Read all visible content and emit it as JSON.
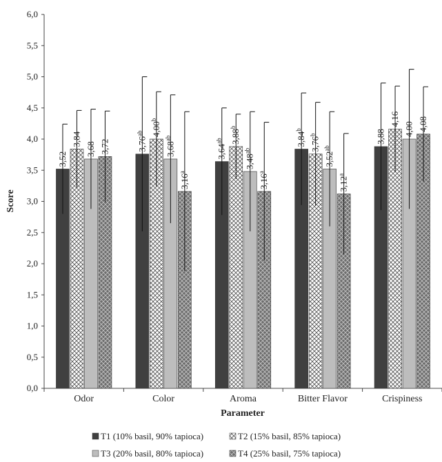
{
  "chart_data": {
    "type": "bar",
    "xlabel": "Parameter",
    "ylabel": "Score",
    "ylim": [
      0,
      6
    ],
    "yticks": [
      "0,0",
      "0,5",
      "1,0",
      "1,5",
      "2,0",
      "2,5",
      "3,0",
      "3,5",
      "4,0",
      "4,5",
      "5,0",
      "5,5",
      "6,0"
    ],
    "categories": [
      "Odor",
      "Color",
      "Aroma",
      "Bitter Flavor",
      "Crispiness"
    ],
    "grid": false,
    "legend_placement": "bottom",
    "series": [
      {
        "name": "T1 (10% basil, 90% tapioca)",
        "pattern": "solid-dark",
        "values": [
          3.52,
          3.76,
          3.64,
          3.84,
          3.88
        ],
        "err_upper": [
          4.24,
          5.0,
          4.5,
          4.74,
          4.9
        ],
        "err_lower": [
          2.8,
          2.52,
          2.78,
          2.94,
          2.86
        ],
        "labels": [
          "3,52",
          "3,76",
          "3,64",
          "3,84",
          "3,88"
        ],
        "sup": [
          "",
          "ab",
          "ab",
          "b",
          ""
        ]
      },
      {
        "name": "T2 (15% basil, 85% tapioca)",
        "pattern": "crosshatch",
        "values": [
          3.84,
          4.0,
          3.88,
          3.76,
          4.16
        ],
        "err_upper": [
          4.46,
          4.76,
          4.4,
          4.59,
          4.85
        ],
        "err_lower": [
          3.22,
          3.24,
          3.36,
          2.93,
          3.47
        ],
        "labels": [
          "3,84",
          "4,00",
          "3,88",
          "3,76",
          "4,16"
        ],
        "sup": [
          "",
          "b",
          "b",
          "b",
          ""
        ]
      },
      {
        "name": "T3 (20% basil, 80% tapioca)",
        "pattern": "solid-light",
        "values": [
          3.68,
          3.68,
          3.48,
          3.52,
          4.0
        ],
        "err_upper": [
          4.48,
          4.71,
          4.44,
          4.44,
          5.12
        ],
        "err_lower": [
          2.88,
          2.65,
          2.52,
          2.6,
          2.88
        ],
        "labels": [
          "3,68",
          "3,68",
          "3,48",
          "3,52",
          "4,00"
        ],
        "sup": [
          "",
          "ab",
          "ab",
          "ab",
          ""
        ]
      },
      {
        "name": "T4 (25% basil, 75% tapioca)",
        "pattern": "diamond",
        "values": [
          3.72,
          3.16,
          3.16,
          3.12,
          4.08
        ],
        "err_upper": [
          4.45,
          4.44,
          4.27,
          4.09,
          4.84
        ],
        "err_lower": [
          2.99,
          1.88,
          2.05,
          2.15,
          3.32
        ],
        "labels": [
          "3,72",
          "3,16",
          "3,16",
          "3,12",
          "4,08"
        ],
        "sup": [
          "",
          "a",
          "a",
          "a",
          ""
        ]
      }
    ]
  }
}
